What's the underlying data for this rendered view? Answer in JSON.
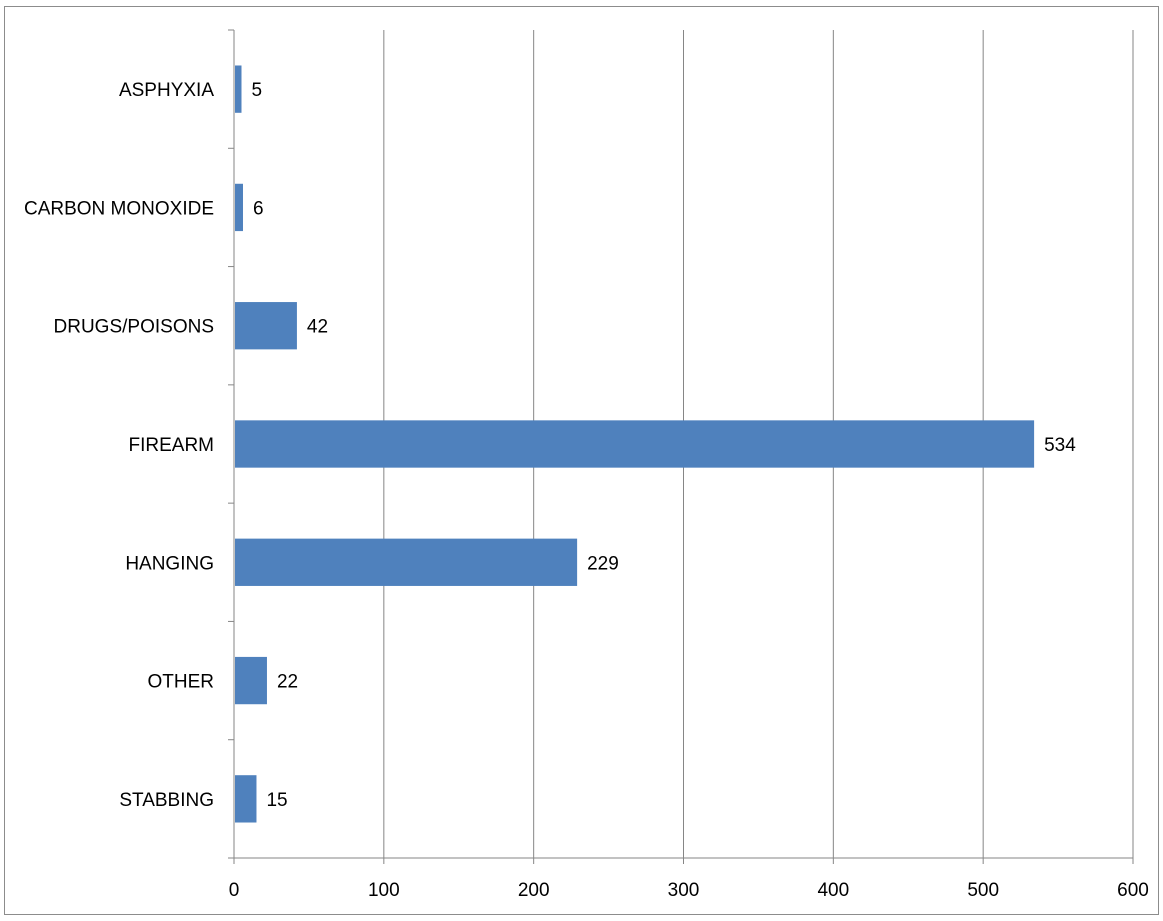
{
  "chart_data": {
    "type": "bar",
    "orientation": "horizontal",
    "title": "",
    "xlabel": "",
    "ylabel": "",
    "categories": [
      "ASPHYXIA",
      "CARBON MONOXIDE",
      "DRUGS/POISONS",
      "FIREARM",
      "HANGING",
      "OTHER",
      "STABBING"
    ],
    "values": [
      5,
      6,
      42,
      534,
      229,
      22,
      15
    ],
    "xlim": [
      0,
      600
    ],
    "xticks": [
      0,
      100,
      200,
      300,
      400,
      500,
      600
    ],
    "grid": "vertical",
    "legend": "none",
    "data_labels": true,
    "colors": {
      "bar": "#4F81BD",
      "grid": "#868686",
      "axis": "#868686"
    }
  }
}
